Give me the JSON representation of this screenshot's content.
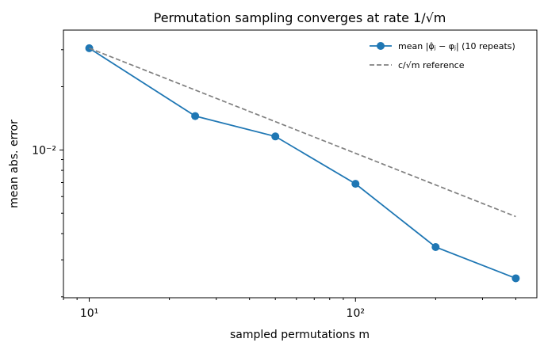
{
  "chart_data": {
    "type": "line",
    "title": "Permutation sampling converges at rate 1/√m",
    "xlabel": "sampled permutations m",
    "ylabel": "mean abs. error",
    "xscale": "log",
    "yscale": "log",
    "xlim": [
      8.0,
      480
    ],
    "ylim": [
      0.00198,
      0.0372
    ],
    "x_ticks": [
      {
        "value": 10,
        "label": "10¹"
      },
      {
        "value": 100,
        "label": "10²"
      }
    ],
    "y_ticks": [
      {
        "value": 0.01,
        "label": "10⁻²"
      }
    ],
    "grid": false,
    "legend_position": "top-right",
    "series": [
      {
        "name": "mean |φ̂ⱼ − φⱼ| (10 repeats)",
        "style": "solid",
        "marker": "circle",
        "color": "#1f77b4",
        "x": [
          10,
          25,
          50,
          100,
          200,
          400
        ],
        "y": [
          0.0305,
          0.0145,
          0.0116,
          0.0069,
          0.00345,
          0.00245
        ]
      },
      {
        "name": "c/√m reference",
        "style": "dashed",
        "marker": "none",
        "color": "#808080",
        "x": [
          10,
          400
        ],
        "y": [
          0.0305,
          0.00482
        ]
      }
    ]
  }
}
